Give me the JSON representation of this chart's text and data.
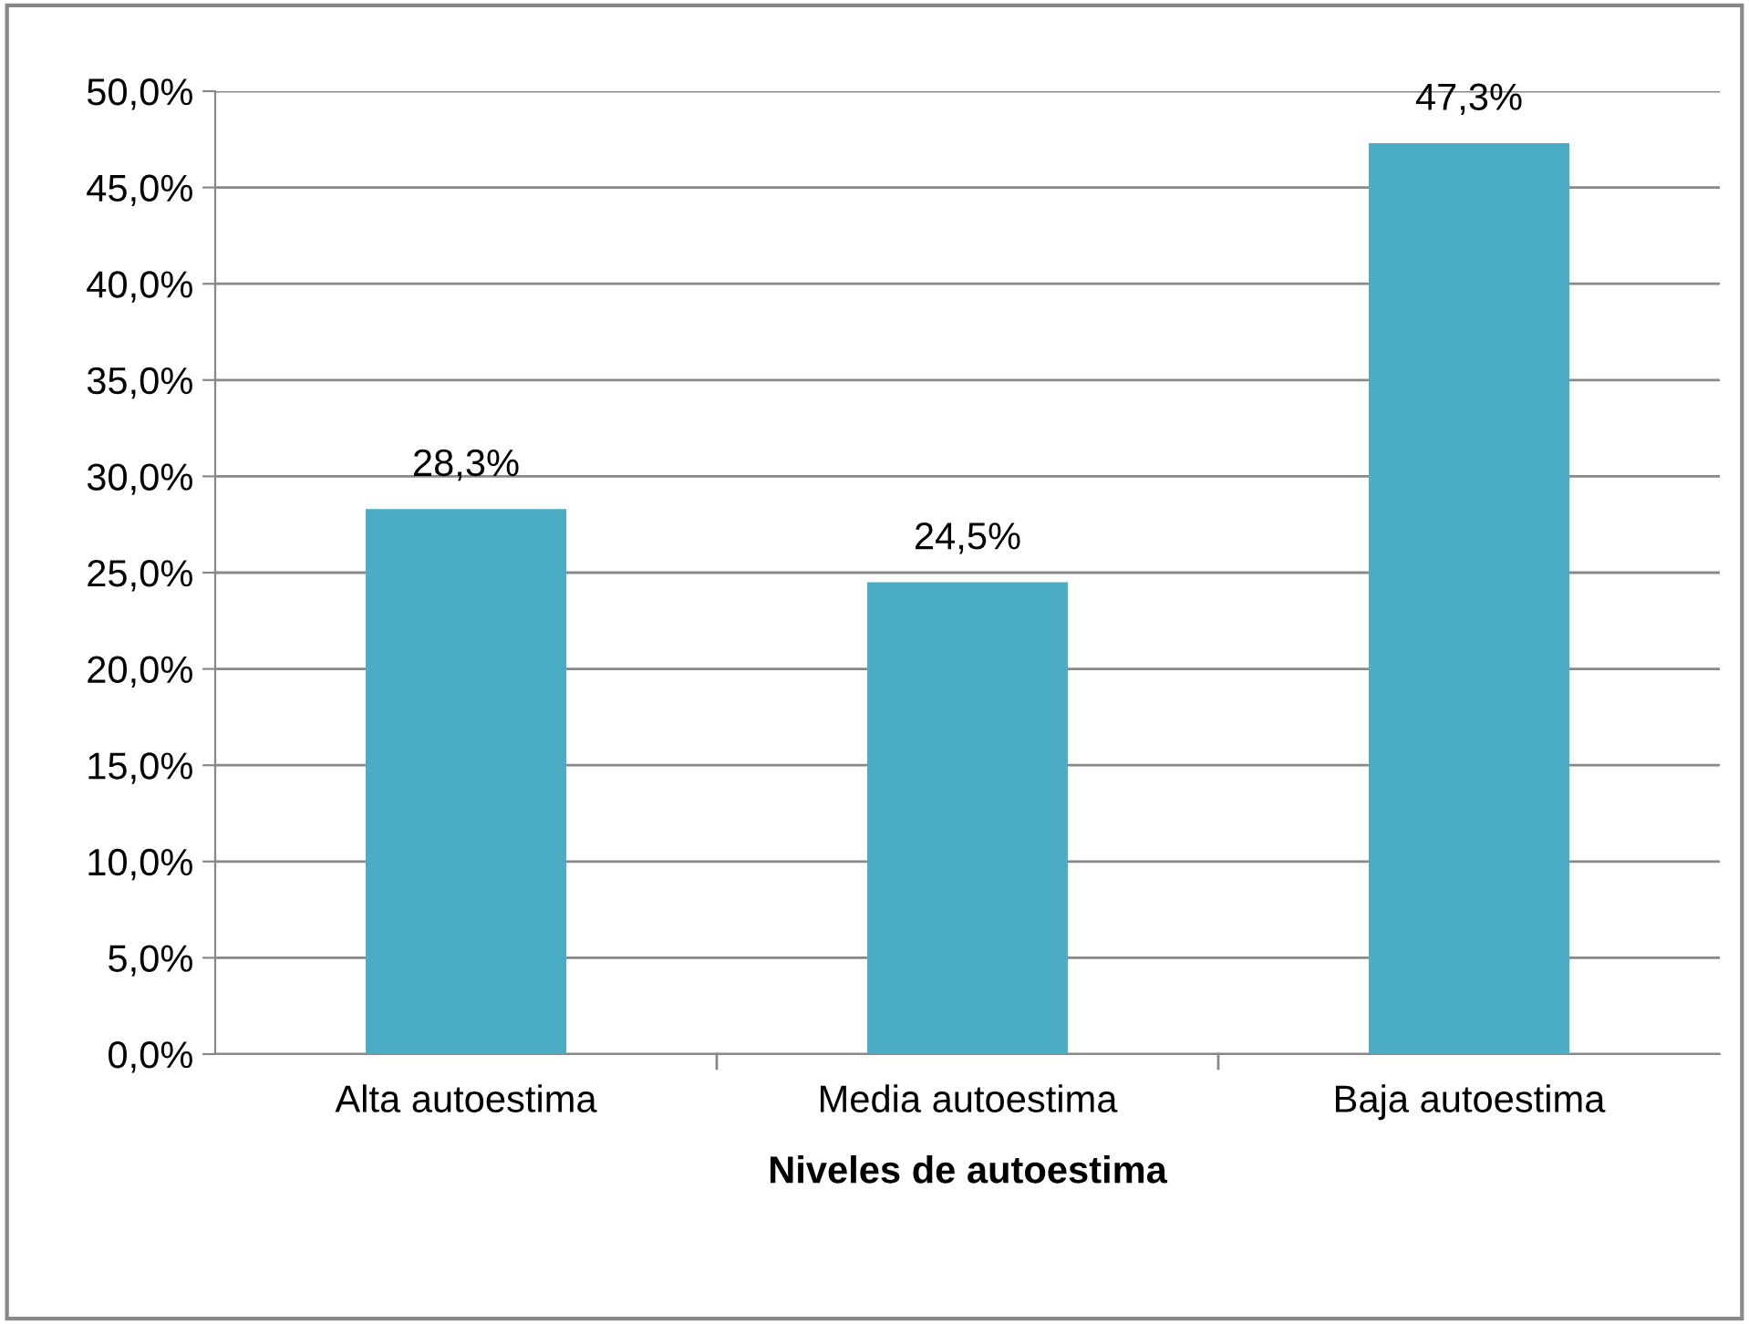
{
  "chart_data": {
    "type": "bar",
    "xlabel": "Niveles de autoestima",
    "categories": [
      "Alta autoestima",
      "Media autoestima",
      "Baja autoestima"
    ],
    "values": [
      28.3,
      24.5,
      47.3
    ],
    "color": "#4bacc6",
    "value_labels": [
      "28,3%",
      "24,5%",
      "47,3%"
    ],
    "ylim": [
      0,
      50
    ],
    "yticks": [
      {
        "value": 0,
        "label": "0,0%"
      },
      {
        "value": 5,
        "label": "5,0%"
      },
      {
        "value": 10,
        "label": "10,0%"
      },
      {
        "value": 15,
        "label": "15,0%"
      },
      {
        "value": 20,
        "label": "20,0%"
      },
      {
        "value": 25,
        "label": "25,0%"
      },
      {
        "value": 30,
        "label": "30,0%"
      },
      {
        "value": 35,
        "label": "35,0%"
      },
      {
        "value": 40,
        "label": "40,0%"
      },
      {
        "value": 45,
        "label": "45,0%"
      },
      {
        "value": 50,
        "label": "50,0%"
      }
    ],
    "grid": "y",
    "legend": false
  }
}
